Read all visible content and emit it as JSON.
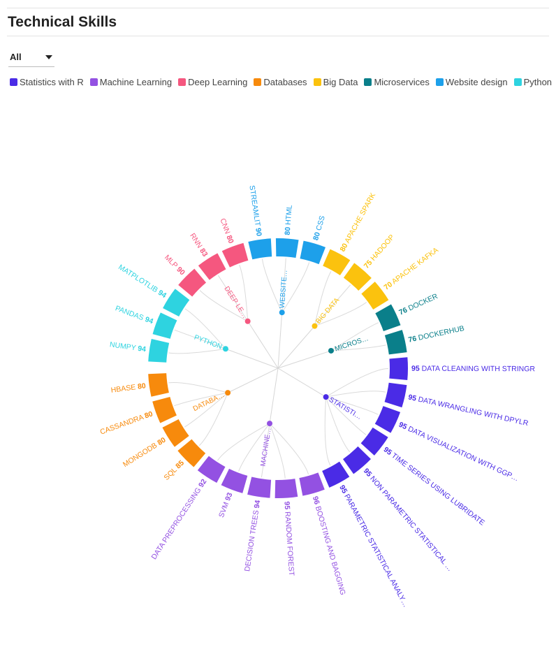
{
  "page": {
    "title": "Technical Skills",
    "filter_value": "All"
  },
  "chart_data": {
    "type": "radial-bar",
    "groups": [
      {
        "name": "Statistics with R",
        "label": "STATISTI…",
        "color": "#4A2BE6",
        "skills": [
          {
            "name": "DATA CLEANING WITH STRINGR",
            "value": 95
          },
          {
            "name": "DATA WRANGLING WITH DPYLR",
            "value": 95
          },
          {
            "name": "DATA VISUALIZATION WITH GGP…",
            "value": 95
          },
          {
            "name": "TIME SERIES USING LUBRIDATE",
            "value": 95
          },
          {
            "name": "NON PARAMETRIC STATISTICAL …",
            "value": 95
          },
          {
            "name": "PARAMETRIC STATISTICAL ANALY…",
            "value": 95
          }
        ]
      },
      {
        "name": "Machine Learning",
        "label": "MACHINE…",
        "color": "#9351E2",
        "skills": [
          {
            "name": "BOOSTING AND BAGGING",
            "value": 96
          },
          {
            "name": "RANDOM FOREST",
            "value": 95
          },
          {
            "name": "DECISION TREES",
            "value": 94
          },
          {
            "name": "SVM",
            "value": 93
          },
          {
            "name": "DATA PREPROCESSING",
            "value": 92
          }
        ]
      },
      {
        "name": "Deep Learning",
        "label": "DEEP LE…",
        "color": "#F5577F",
        "skills": [
          {
            "name": "MLP",
            "value": 90
          },
          {
            "name": "RNN",
            "value": 83
          },
          {
            "name": "CNN",
            "value": 80
          }
        ]
      },
      {
        "name": "Databases",
        "label": "DATABA…",
        "color": "#F78A0C",
        "skills": [
          {
            "name": "SQL",
            "value": 85
          },
          {
            "name": "MONGODB",
            "value": 80
          },
          {
            "name": "CASSANDRA",
            "value": 80
          },
          {
            "name": "HBASE",
            "value": 80
          }
        ]
      },
      {
        "name": "Big Data",
        "label": "BIG DATA",
        "color": "#FBC20E",
        "skills": [
          {
            "name": "APACHE SPARK",
            "value": 80
          },
          {
            "name": "HADOOP",
            "value": 75
          },
          {
            "name": "APACHE KAFKA",
            "value": 70
          }
        ]
      },
      {
        "name": "Microservices",
        "label": "MICROS…",
        "color": "#0A7F8A",
        "skills": [
          {
            "name": "DOCKER",
            "value": 76
          },
          {
            "name": "DOCKERHUB",
            "value": 76
          }
        ]
      },
      {
        "name": "Website design",
        "label": "WEBSITE…",
        "color": "#1DA0EA",
        "skills": [
          {
            "name": "STREAMLIT",
            "value": 90
          },
          {
            "name": "HTML",
            "value": 80
          },
          {
            "name": "CSS",
            "value": 80
          }
        ]
      },
      {
        "name": "Python",
        "label": "PYTHON",
        "color": "#2ED3E0",
        "skills": [
          {
            "name": "NUMPY",
            "value": 94
          },
          {
            "name": "PANDAS",
            "value": 94
          },
          {
            "name": "MATPLOTLIB",
            "value": 94
          }
        ]
      }
    ],
    "ring_order": [
      [
        "Python",
        "NUMPY"
      ],
      [
        "Python",
        "PANDAS"
      ],
      [
        "Python",
        "MATPLOTLIB"
      ],
      [
        "Deep Learning",
        "MLP"
      ],
      [
        "Deep Learning",
        "RNN"
      ],
      [
        "Deep Learning",
        "CNN"
      ],
      [
        "Website design",
        "STREAMLIT"
      ],
      [
        "Website design",
        "HTML"
      ],
      [
        "Website design",
        "CSS"
      ],
      [
        "Big Data",
        "APACHE SPARK"
      ],
      [
        "Big Data",
        "HADOOP"
      ],
      [
        "Big Data",
        "APACHE KAFKA"
      ],
      [
        "Microservices",
        "DOCKER"
      ],
      [
        "Microservices",
        "DOCKERHUB"
      ],
      [
        "Statistics with R",
        "DATA CLEANING WITH STRINGR"
      ],
      [
        "Statistics with R",
        "DATA WRANGLING WITH DPYLR"
      ],
      [
        "Statistics with R",
        "DATA VISUALIZATION WITH GGP…"
      ],
      [
        "Statistics with R",
        "TIME SERIES USING LUBRIDATE"
      ],
      [
        "Statistics with R",
        "NON PARAMETRIC STATISTICAL …"
      ],
      [
        "Statistics with R",
        "PARAMETRIC STATISTICAL ANALY…"
      ],
      [
        "Machine Learning",
        "BOOSTING AND BAGGING"
      ],
      [
        "Machine Learning",
        "RANDOM FOREST"
      ],
      [
        "Machine Learning",
        "DECISION TREES"
      ],
      [
        "Machine Learning",
        "SVM"
      ],
      [
        "Machine Learning",
        "DATA PREPROCESSING"
      ],
      [
        "Databases",
        "SQL"
      ],
      [
        "Databases",
        "MONGODB"
      ],
      [
        "Databases",
        "CASSANDRA"
      ],
      [
        "Databases",
        "HBASE"
      ]
    ],
    "legend_order": [
      "Statistics with R",
      "Machine Learning",
      "Deep Learning",
      "Databases",
      "Big Data",
      "Microservices",
      "Website design",
      "Python"
    ]
  }
}
